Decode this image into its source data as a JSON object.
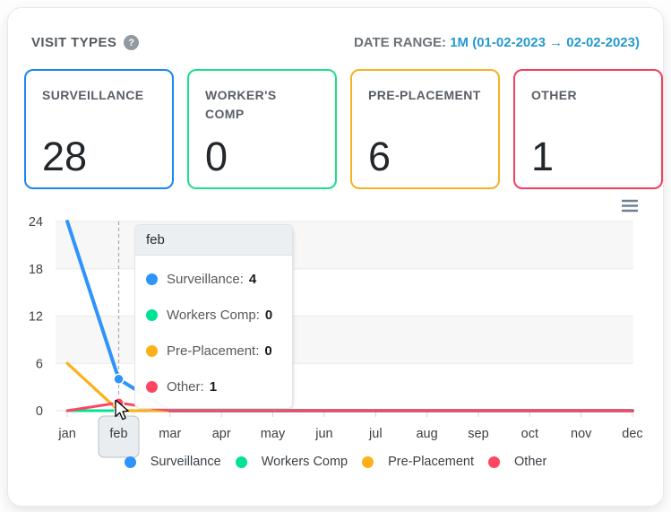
{
  "header": {
    "title": "VISIT TYPES",
    "help_label": "?",
    "date_range_label": "DATE RANGE:",
    "date_range_value": "1M (01-02-2023 → 02-02-2023)"
  },
  "cards": [
    {
      "label": "SURVEILLANCE",
      "value": "28",
      "color": "#1b87f0"
    },
    {
      "label": "WORKER'S COMP",
      "value": "0",
      "color": "#1edd8d"
    },
    {
      "label": "PRE-PLACEMENT",
      "value": "6",
      "color": "#f5b123"
    },
    {
      "label": "OTHER",
      "value": "1",
      "color": "#f43f5e"
    }
  ],
  "chart_data": {
    "type": "line",
    "title": "",
    "categories": [
      "jan",
      "feb",
      "mar",
      "apr",
      "may",
      "jun",
      "jul",
      "aug",
      "sep",
      "oct",
      "nov",
      "dec"
    ],
    "series": [
      {
        "name": "Surveillance",
        "color": "#2e93fa",
        "values": [
          24,
          4,
          0,
          0,
          0,
          0,
          0,
          0,
          0,
          0,
          0,
          0
        ]
      },
      {
        "name": "Workers Comp",
        "color": "#00e396",
        "values": [
          0,
          0,
          0,
          0,
          0,
          0,
          0,
          0,
          0,
          0,
          0,
          0
        ]
      },
      {
        "name": "Pre-Placement",
        "color": "#feb019",
        "values": [
          6,
          0,
          0,
          0,
          0,
          0,
          0,
          0,
          0,
          0,
          0,
          0
        ]
      },
      {
        "name": "Other",
        "color": "#ff4560",
        "values": [
          0,
          1,
          0,
          0,
          0,
          0,
          0,
          0,
          0,
          0,
          0,
          0
        ]
      }
    ],
    "ylim": [
      0,
      24
    ],
    "yticks": [
      "24",
      "18",
      "12",
      "6",
      "0"
    ],
    "grid": "striped-horizontal",
    "legend_position": "bottom",
    "highlighted_category": "feb"
  },
  "tooltip": {
    "title": "feb",
    "rows": [
      {
        "label": "Surveillance:",
        "value": "4"
      },
      {
        "label": "Workers Comp:",
        "value": "0"
      },
      {
        "label": "Pre-Placement:",
        "value": "0"
      },
      {
        "label": "Other:",
        "value": "1"
      }
    ]
  }
}
